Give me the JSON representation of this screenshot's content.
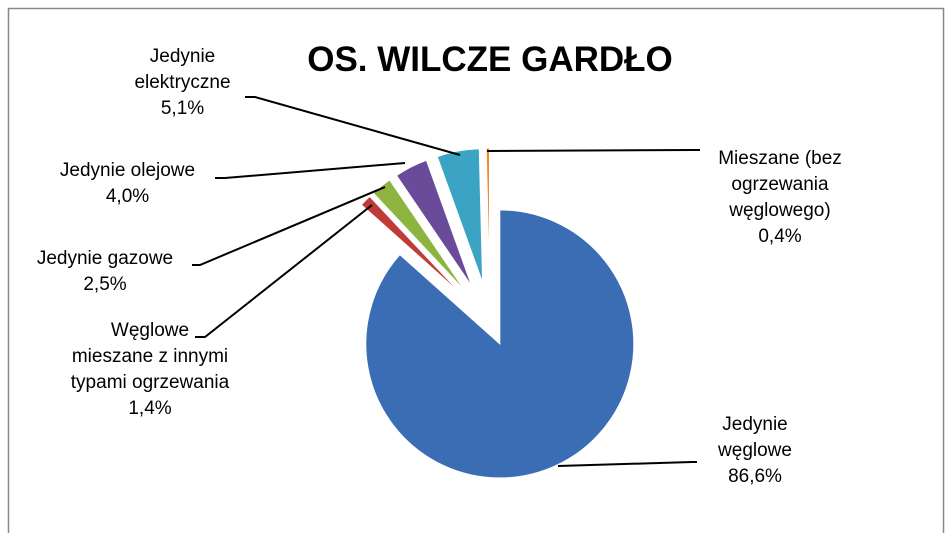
{
  "chart_data": {
    "type": "pie",
    "title": "OS. WILCZE GARDŁO",
    "categories": [
      "Jedynie węglowe",
      "Węglowe mieszane z innymi typami ogrzewania",
      "Jedynie gazowe",
      "Jedynie olejowe",
      "Jedynie elektryczne",
      "Mieszane (bez ogrzewania węglowego)"
    ],
    "values": [
      86.6,
      1.4,
      2.5,
      4.0,
      5.1,
      0.4
    ],
    "value_labels": [
      "86,6%",
      "1,4%",
      "2,5%",
      "4,0%",
      "5,1%",
      "0,4%"
    ],
    "colors": [
      "#3a6db3",
      "#be3b37",
      "#8db43f",
      "#6a4b99",
      "#3ba4c4",
      "#f2892a"
    ]
  }
}
